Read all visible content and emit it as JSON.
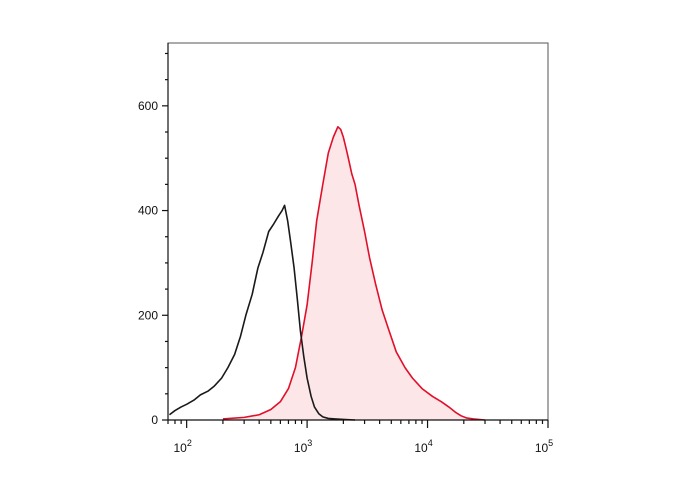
{
  "chart_data": {
    "type": "area",
    "title": "",
    "xlabel": "",
    "ylabel": "",
    "x_scale": "log",
    "xlim": [
      70,
      100000
    ],
    "ylim": [
      0,
      720
    ],
    "grid": false,
    "legend": "none",
    "x_ticks": [
      {
        "value": 100,
        "base": "10",
        "exp": "2"
      },
      {
        "value": 1000,
        "base": "10",
        "exp": "3"
      },
      {
        "value": 10000,
        "base": "10",
        "exp": "4"
      },
      {
        "value": 100000,
        "base": "10",
        "exp": "5"
      }
    ],
    "y_ticks": [
      {
        "value": 0,
        "label": "0"
      },
      {
        "value": 200,
        "label": "200"
      },
      {
        "value": 400,
        "label": "400"
      },
      {
        "value": 600,
        "label": "600"
      }
    ],
    "series": [
      {
        "color": "#1a1a1a",
        "fill": "none",
        "x": [
          72,
          80,
          90,
          100,
          115,
          130,
          150,
          170,
          195,
          220,
          250,
          280,
          310,
          350,
          390,
          430,
          480,
          530,
          580,
          620,
          650,
          690,
          730,
          780,
          830,
          880,
          940,
          1000,
          1080,
          1150,
          1250,
          1350,
          1500,
          1700,
          2000,
          2500
        ],
        "y": [
          10,
          18,
          25,
          30,
          38,
          48,
          55,
          65,
          80,
          100,
          125,
          160,
          200,
          240,
          290,
          320,
          360,
          375,
          390,
          400,
          410,
          380,
          340,
          290,
          230,
          170,
          120,
          80,
          45,
          25,
          12,
          6,
          3,
          2,
          1,
          0
        ]
      },
      {
        "color": "#e0102a",
        "fill": "#fde6e8",
        "x": [
          200,
          300,
          400,
          500,
          600,
          700,
          800,
          900,
          1000,
          1100,
          1200,
          1350,
          1500,
          1650,
          1800,
          1900,
          2000,
          2100,
          2200,
          2350,
          2500,
          2700,
          3000,
          3300,
          3700,
          4200,
          4800,
          5500,
          6500,
          7500,
          9000,
          11000,
          13000,
          15000,
          17000,
          19000,
          21000,
          24000,
          30000
        ],
        "y": [
          2,
          5,
          10,
          20,
          35,
          60,
          100,
          160,
          220,
          300,
          380,
          450,
          510,
          540,
          560,
          555,
          540,
          520,
          500,
          470,
          450,
          410,
          360,
          310,
          260,
          210,
          170,
          130,
          100,
          80,
          60,
          45,
          35,
          25,
          15,
          8,
          4,
          2,
          0
        ]
      }
    ]
  }
}
